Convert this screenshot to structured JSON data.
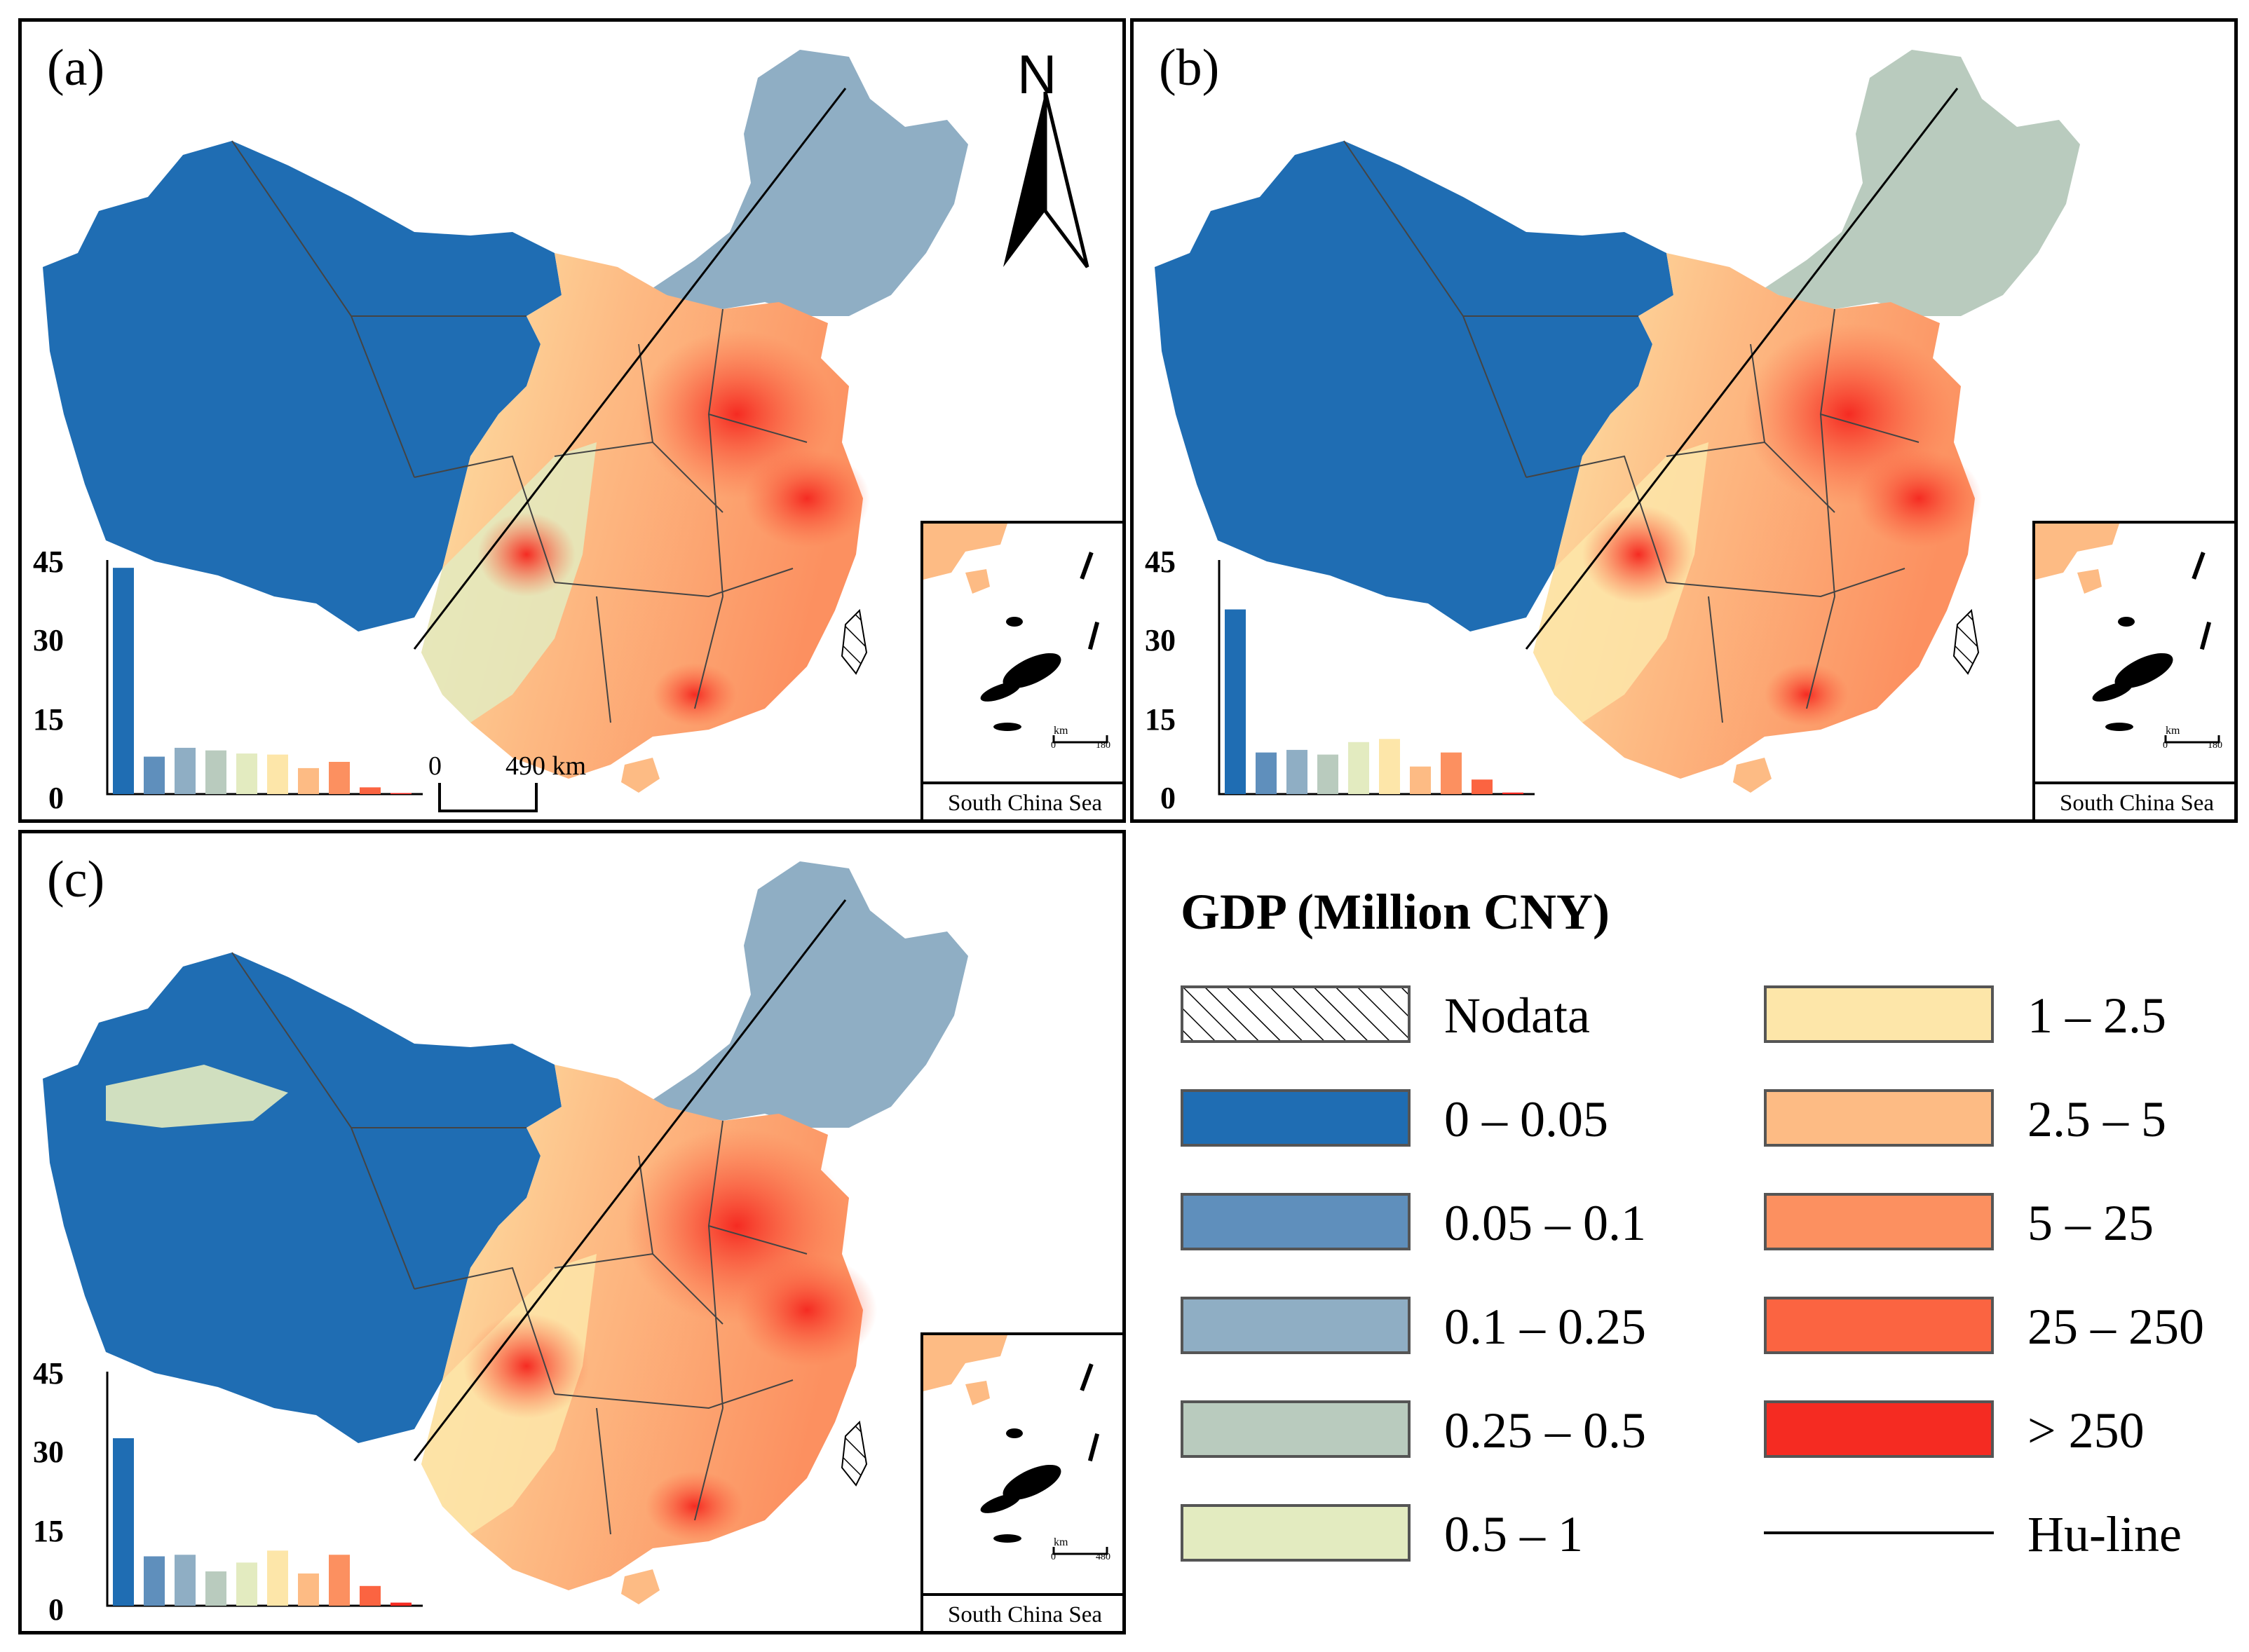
{
  "panels": [
    {
      "id": "a",
      "label": "(a)",
      "hist_values": [
        43.5,
        7.2,
        8.9,
        8.4,
        7.8,
        7.6,
        5.0,
        6.2,
        1.3,
        0.2
      ]
    },
    {
      "id": "b",
      "label": "(b)",
      "hist_values": [
        35.5,
        8.0,
        8.5,
        7.6,
        10.0,
        10.6,
        5.3,
        8.0,
        2.8,
        0.3
      ]
    },
    {
      "id": "c",
      "label": "(c)",
      "hist_values": [
        32.2,
        9.5,
        9.8,
        6.6,
        8.3,
        10.6,
        6.2,
        9.8,
        3.8,
        0.6
      ]
    }
  ],
  "histogram": {
    "y_ticks": [
      "45",
      "30",
      "15",
      "0"
    ],
    "y_max": 45
  },
  "scale_bar": {
    "zero": "0",
    "distance": "490 km"
  },
  "north_arrow": {
    "label": "N"
  },
  "inset": {
    "caption": "South China Sea",
    "scale_unit": "km",
    "scale_zero": "0",
    "scale_values": [
      "180",
      "180",
      "480"
    ]
  },
  "legend": {
    "title": "GDP (Million CNY)",
    "left_items": [
      {
        "label": "Nodata",
        "color": "hatch"
      },
      {
        "label": "0 – 0.05",
        "color": "#1f6db3"
      },
      {
        "label": "0.05 – 0.1",
        "color": "#5f8fbc"
      },
      {
        "label": "0.1 – 0.25",
        "color": "#8faec4"
      },
      {
        "label": "0.25 – 0.5",
        "color": "#b9cbbe"
      },
      {
        "label": "0.5 – 1",
        "color": "#e3ebc0"
      }
    ],
    "right_items": [
      {
        "label": "1 – 2.5",
        "color": "#fde6a9"
      },
      {
        "label": "2.5 – 5",
        "color": "#fdbb84"
      },
      {
        "label": "5 – 25",
        "color": "#fc9060"
      },
      {
        "label": "25 – 250",
        "color": "#fb6441"
      },
      {
        "label": "> 250",
        "color": "#f52b22"
      },
      {
        "label": "Hu-line",
        "color": "line"
      }
    ]
  },
  "colors": {
    "c0": "#1f6db3",
    "c1": "#5f8fbc",
    "c2": "#8faec4",
    "c3": "#b9cbbe",
    "c4": "#e3ebc0",
    "c5": "#fde6a9",
    "c6": "#fdbb84",
    "c7": "#fc9060",
    "c8": "#fb6441",
    "c9": "#f52b22"
  }
}
